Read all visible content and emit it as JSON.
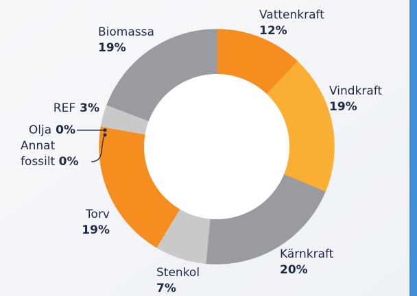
{
  "chart_data": {
    "type": "donut",
    "categories": [
      "Vattenkraft",
      "Vindkraft",
      "Kärnkraft",
      "Stenkol",
      "Torv",
      "Annat fossilt",
      "Olja",
      "REF",
      "Biomassa"
    ],
    "values": [
      12,
      19,
      20,
      7,
      19,
      0,
      0,
      3,
      19
    ],
    "value_labels": [
      "12%",
      "19%",
      "20%",
      "7%",
      "19%",
      "0%",
      "0%",
      "3%",
      "19%"
    ],
    "colors": [
      "#f68d1f",
      "#fbae34",
      "#9a9b9e",
      "#c9c9c9",
      "#f68d1f",
      "#f8a23a",
      "#fbbf60",
      "#c9c9c9",
      "#9a9b9e"
    ]
  }
}
